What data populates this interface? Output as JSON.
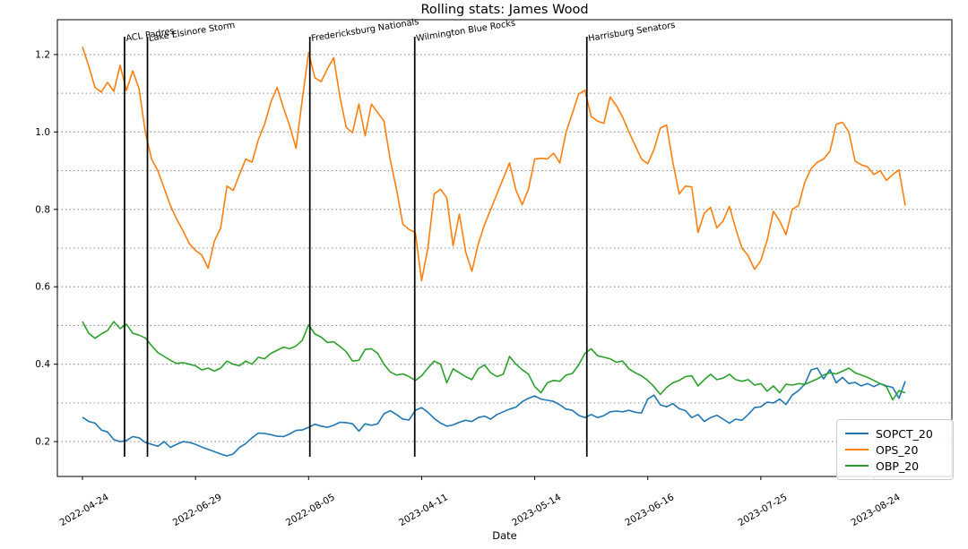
{
  "chart_data": {
    "type": "line",
    "title": "Rolling stats: James Wood",
    "xlabel": "Date",
    "ylabel": "",
    "grid": "horizontal dotted",
    "legend_position": "lower right",
    "ylim": [
      0.11,
      1.29
    ],
    "y_ticks": [
      0.2,
      0.4,
      0.6,
      0.8,
      1.0,
      1.2
    ],
    "y_gridlines": [
      0.2,
      0.3,
      0.4,
      0.5,
      0.6,
      0.7,
      0.8,
      0.9,
      1.0,
      1.1,
      1.2
    ],
    "x_tick_labels": [
      "2022-04-24",
      "2022-06-29",
      "2022-08-05",
      "2023-04-11",
      "2023-05-14",
      "2023-06-16",
      "2023-07-25",
      "2023-08-24"
    ],
    "x_tick_indices": [
      0,
      18,
      36,
      54,
      72,
      90,
      108,
      126
    ],
    "annotations": [
      {
        "label": "ACL Padres",
        "x_index": 6.7
      },
      {
        "label": "Lake Elsinore Storm",
        "x_index": 10.35
      },
      {
        "label": "Fredericksburg Nationals",
        "x_index": 36.2
      },
      {
        "label": "Wilmington Blue Rocks",
        "x_index": 52.9
      },
      {
        "label": "Harrisburg Senators",
        "x_index": 80.3
      }
    ],
    "series": [
      {
        "name": "SOPCT_20",
        "color": "#1f77b4",
        "values": [
          0.263,
          0.252,
          0.248,
          0.23,
          0.225,
          0.205,
          0.2,
          0.203,
          0.213,
          0.21,
          0.198,
          0.193,
          0.188,
          0.2,
          0.185,
          0.193,
          0.2,
          0.198,
          0.193,
          0.186,
          0.18,
          0.174,
          0.168,
          0.163,
          0.168,
          0.185,
          0.195,
          0.21,
          0.222,
          0.221,
          0.218,
          0.214,
          0.213,
          0.22,
          0.229,
          0.23,
          0.237,
          0.245,
          0.24,
          0.237,
          0.242,
          0.25,
          0.249,
          0.246,
          0.227,
          0.246,
          0.242,
          0.246,
          0.272,
          0.28,
          0.27,
          0.258,
          0.256,
          0.281,
          0.288,
          0.276,
          0.26,
          0.248,
          0.24,
          0.243,
          0.25,
          0.255,
          0.252,
          0.262,
          0.266,
          0.258,
          0.27,
          0.277,
          0.284,
          0.289,
          0.303,
          0.312,
          0.318,
          0.31,
          0.307,
          0.304,
          0.295,
          0.284,
          0.281,
          0.268,
          0.262,
          0.27,
          0.262,
          0.267,
          0.277,
          0.279,
          0.277,
          0.281,
          0.276,
          0.274,
          0.31,
          0.32,
          0.295,
          0.29,
          0.298,
          0.285,
          0.28,
          0.262,
          0.27,
          0.252,
          0.262,
          0.268,
          0.258,
          0.248,
          0.258,
          0.255,
          0.27,
          0.288,
          0.29,
          0.302,
          0.3,
          0.31,
          0.296,
          0.32,
          0.332,
          0.348,
          0.385,
          0.39,
          0.362,
          0.386,
          0.352,
          0.366,
          0.35,
          0.353,
          0.344,
          0.35,
          0.342,
          0.35,
          0.344,
          0.34,
          0.312,
          0.356
        ]
      },
      {
        "name": "OPS_20",
        "color": "#ff7f0e",
        "values": [
          1.22,
          1.17,
          1.115,
          1.103,
          1.128,
          1.105,
          1.172,
          1.107,
          1.158,
          1.112,
          1.0,
          0.93,
          0.9,
          0.855,
          0.81,
          0.775,
          0.745,
          0.712,
          0.694,
          0.682,
          0.648,
          0.718,
          0.752,
          0.86,
          0.849,
          0.89,
          0.93,
          0.922,
          0.98,
          1.02,
          1.077,
          1.115,
          1.062,
          1.015,
          0.958,
          1.085,
          1.205,
          1.14,
          1.13,
          1.163,
          1.192,
          1.09,
          1.012,
          0.998,
          1.072,
          0.99,
          1.072,
          1.05,
          1.028,
          0.928,
          0.852,
          0.762,
          0.748,
          0.74,
          0.616,
          0.7,
          0.84,
          0.852,
          0.83,
          0.706,
          0.788,
          0.69,
          0.64,
          0.71,
          0.76,
          0.8,
          0.84,
          0.88,
          0.92,
          0.85,
          0.812,
          0.852,
          0.93,
          0.932,
          0.93,
          0.945,
          0.92,
          1.0,
          1.048,
          1.098,
          1.108,
          1.04,
          1.028,
          1.022,
          1.09,
          1.068,
          1.038,
          1.0,
          0.965,
          0.93,
          0.918,
          0.955,
          1.01,
          1.018,
          0.92,
          0.84,
          0.86,
          0.858,
          0.74,
          0.79,
          0.805,
          0.752,
          0.77,
          0.808,
          0.75,
          0.7,
          0.68,
          0.645,
          0.668,
          0.72,
          0.795,
          0.77,
          0.735,
          0.8,
          0.81,
          0.87,
          0.905,
          0.922,
          0.93,
          0.95,
          1.02,
          1.025,
          1.0,
          0.925,
          0.915,
          0.91,
          0.89,
          0.9,
          0.875,
          0.89,
          0.902,
          0.81
        ]
      },
      {
        "name": "OBP_20",
        "color": "#2ca02c",
        "values": [
          0.51,
          0.48,
          0.467,
          0.478,
          0.487,
          0.51,
          0.492,
          0.503,
          0.48,
          0.475,
          0.468,
          0.448,
          0.43,
          0.42,
          0.41,
          0.402,
          0.404,
          0.4,
          0.396,
          0.385,
          0.39,
          0.382,
          0.39,
          0.408,
          0.4,
          0.396,
          0.408,
          0.4,
          0.418,
          0.414,
          0.428,
          0.436,
          0.444,
          0.44,
          0.447,
          0.462,
          0.502,
          0.478,
          0.47,
          0.456,
          0.458,
          0.446,
          0.432,
          0.408,
          0.41,
          0.438,
          0.44,
          0.428,
          0.4,
          0.38,
          0.372,
          0.375,
          0.368,
          0.358,
          0.37,
          0.39,
          0.408,
          0.4,
          0.352,
          0.388,
          0.378,
          0.368,
          0.36,
          0.388,
          0.398,
          0.378,
          0.368,
          0.374,
          0.42,
          0.4,
          0.386,
          0.374,
          0.342,
          0.326,
          0.352,
          0.358,
          0.356,
          0.372,
          0.376,
          0.398,
          0.428,
          0.44,
          0.422,
          0.418,
          0.414,
          0.405,
          0.408,
          0.388,
          0.378,
          0.37,
          0.358,
          0.342,
          0.322,
          0.34,
          0.352,
          0.358,
          0.368,
          0.37,
          0.344,
          0.36,
          0.374,
          0.36,
          0.364,
          0.374,
          0.36,
          0.356,
          0.36,
          0.346,
          0.35,
          0.33,
          0.344,
          0.326,
          0.348,
          0.346,
          0.35,
          0.348,
          0.355,
          0.362,
          0.372,
          0.378,
          0.375,
          0.382,
          0.39,
          0.378,
          0.372,
          0.366,
          0.358,
          0.35,
          0.342,
          0.308,
          0.332,
          0.326
        ]
      }
    ]
  }
}
